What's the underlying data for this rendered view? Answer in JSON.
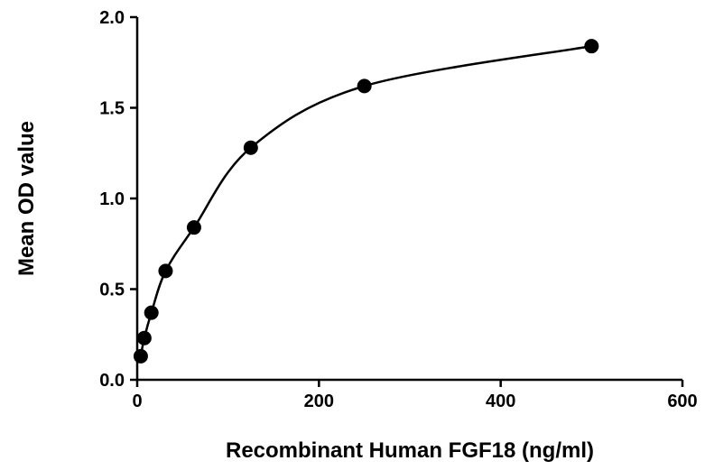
{
  "chart_data": {
    "type": "scatter",
    "title": "",
    "xlabel": "Recombinant Human FGF18 (ng/ml)",
    "ylabel": "Mean OD value",
    "xlim": [
      0,
      600
    ],
    "ylim": [
      0,
      2.0
    ],
    "x_ticks": [
      "0",
      "200",
      "400",
      "600"
    ],
    "y_ticks": [
      "0.0",
      "0.5",
      "1.0",
      "1.5",
      "2.0"
    ],
    "grid": false,
    "legend": "none",
    "series": [
      {
        "x": [
          3.9,
          7.8,
          15.6,
          31.25,
          62.5,
          125,
          250,
          500
        ],
        "y": [
          0.13,
          0.23,
          0.37,
          0.6,
          0.84,
          1.28,
          1.62,
          1.84
        ],
        "marker": "circle",
        "color": "#000000",
        "fit": "curve"
      }
    ]
  }
}
